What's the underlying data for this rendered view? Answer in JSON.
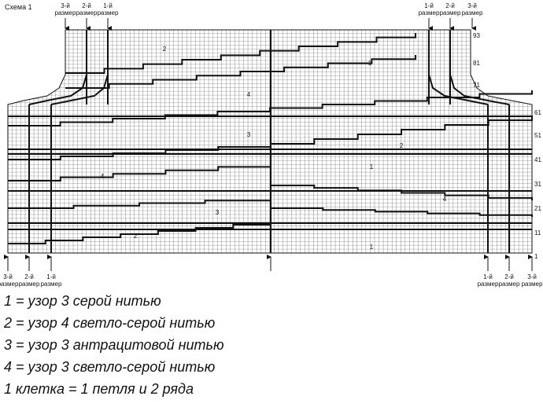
{
  "title": "Схема 1",
  "top_sizes": [
    [
      "3-й",
      "размер"
    ],
    [
      "2-й",
      "размер"
    ],
    [
      "1-й",
      "размер"
    ],
    [
      "1-й",
      "размер"
    ],
    [
      "2-й",
      "размер"
    ],
    [
      "3-й",
      "размер"
    ]
  ],
  "bottom_sizes": [
    [
      "3-й",
      "размер"
    ],
    [
      "2-й",
      "размер"
    ],
    [
      "1-й",
      "размер"
    ],
    [
      "1-й",
      "размер"
    ],
    [
      "2-й",
      "размер"
    ],
    [
      "3-й",
      "размер"
    ]
  ],
  "row_numbers": [
    "93",
    "81",
    "71",
    "61",
    "51",
    "41",
    "31",
    "21",
    "11",
    "1"
  ],
  "region_labels": [
    "2",
    "1",
    "4",
    "3",
    "2",
    "1",
    "4",
    "4",
    "3",
    "2",
    "1"
  ],
  "legend": [
    "1 = узор 3 серой нитью",
    "2 = узор 4 светло-серой нитью",
    "3 = узор 3 антрацитовой нитью",
    "4 = узор 3 светло-серой нитью",
    "1 клетка = 1 петля и 2 ряда"
  ]
}
